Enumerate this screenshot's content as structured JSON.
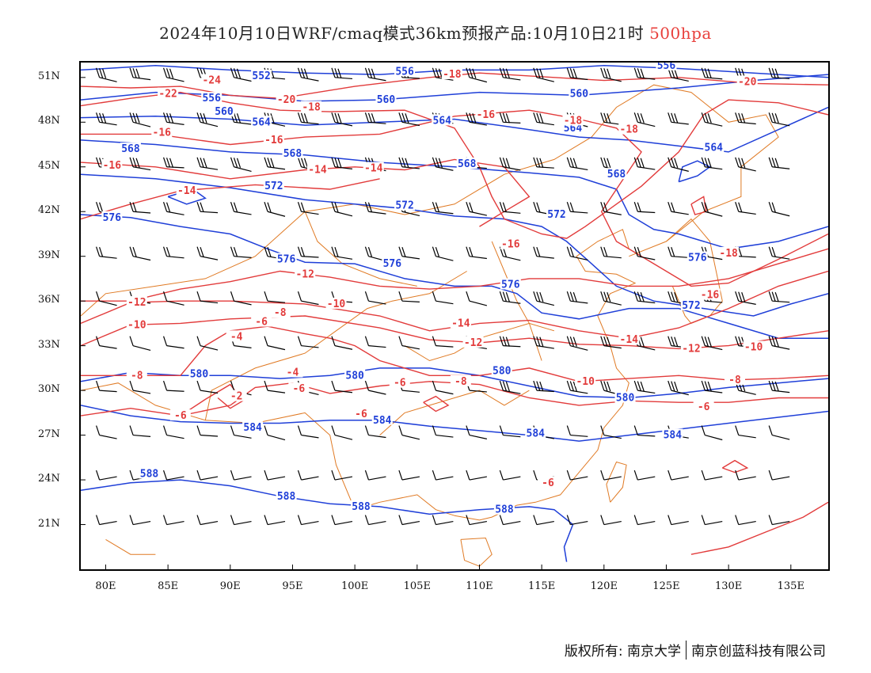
{
  "title": {
    "main": "2024年10月10日WRF/cmaq模式36km预报产品:10月10日21时",
    "level": "500hpa"
  },
  "map": {
    "lon_range": [
      78,
      138
    ],
    "lat_range": [
      18,
      52
    ],
    "lat_ticks": [
      "51N",
      "48N",
      "45N",
      "42N",
      "39N",
      "36N",
      "33N",
      "30N",
      "27N",
      "24N",
      "21N"
    ],
    "lat_values": [
      51,
      48,
      45,
      42,
      39,
      36,
      33,
      30,
      27,
      24,
      21
    ],
    "lon_ticks": [
      "80E",
      "85E",
      "90E",
      "95E",
      "100E",
      "105E",
      "110E",
      "115E",
      "120E",
      "125E",
      "130E",
      "135E"
    ],
    "lon_values": [
      80,
      85,
      90,
      95,
      100,
      105,
      110,
      115,
      120,
      125,
      130,
      135
    ],
    "colors": {
      "height_contour": "#1f3fd8",
      "temperature_contour": "#e23b3b",
      "wind_barb": "#000000",
      "boundary": "#e07a24"
    },
    "height_labels": [
      {
        "text": "552",
        "lon": 92.5,
        "lat": 51.1
      },
      {
        "text": "556",
        "lon": 104,
        "lat": 51.4
      },
      {
        "text": "556",
        "lon": 125,
        "lat": 51.8
      },
      {
        "text": "556",
        "lon": 88.5,
        "lat": 49.6
      },
      {
        "text": "560",
        "lon": 89.5,
        "lat": 48.7
      },
      {
        "text": "560",
        "lon": 102.5,
        "lat": 49.5
      },
      {
        "text": "560",
        "lon": 118,
        "lat": 49.9
      },
      {
        "text": "564",
        "lon": 92.5,
        "lat": 48
      },
      {
        "text": "564",
        "lon": 107,
        "lat": 48.1
      },
      {
        "text": "564",
        "lon": 117.5,
        "lat": 47.6
      },
      {
        "text": "564",
        "lon": 128.8,
        "lat": 46.3
      },
      {
        "text": "568",
        "lon": 82,
        "lat": 46.2
      },
      {
        "text": "568",
        "lon": 95,
        "lat": 45.9
      },
      {
        "text": "568",
        "lon": 109,
        "lat": 45.2
      },
      {
        "text": "568",
        "lon": 121,
        "lat": 44.5
      },
      {
        "text": "572",
        "lon": 93.5,
        "lat": 43.7
      },
      {
        "text": "572",
        "lon": 104,
        "lat": 42.4
      },
      {
        "text": "572",
        "lon": 116.2,
        "lat": 41.8
      },
      {
        "text": "576",
        "lon": 80.5,
        "lat": 41.6
      },
      {
        "text": "576",
        "lon": 94.5,
        "lat": 38.8
      },
      {
        "text": "576",
        "lon": 103,
        "lat": 38.5
      },
      {
        "text": "576",
        "lon": 112.5,
        "lat": 37.1
      },
      {
        "text": "576",
        "lon": 127.5,
        "lat": 38.9
      },
      {
        "text": "572",
        "lon": 127,
        "lat": 35.7
      },
      {
        "text": "580",
        "lon": 87.5,
        "lat": 31.1
      },
      {
        "text": "580",
        "lon": 100,
        "lat": 31
      },
      {
        "text": "580",
        "lon": 111.8,
        "lat": 31.3
      },
      {
        "text": "580",
        "lon": 121.7,
        "lat": 29.5
      },
      {
        "text": "584",
        "lon": 91.8,
        "lat": 27.5
      },
      {
        "text": "584",
        "lon": 102.2,
        "lat": 28
      },
      {
        "text": "584",
        "lon": 114.5,
        "lat": 27.1
      },
      {
        "text": "584",
        "lon": 125.5,
        "lat": 27
      },
      {
        "text": "588",
        "lon": 83.5,
        "lat": 24.4
      },
      {
        "text": "588",
        "lon": 94.5,
        "lat": 22.9
      },
      {
        "text": "588",
        "lon": 100.5,
        "lat": 22.2
      },
      {
        "text": "588",
        "lon": 112,
        "lat": 22
      },
      {
        "text": "588",
        "lon": 83.5,
        "lat": 24.4
      }
    ],
    "temp_labels": [
      {
        "text": "-24",
        "lon": 88.5,
        "lat": 50.8
      },
      {
        "text": "-22",
        "lon": 85,
        "lat": 49.9
      },
      {
        "text": "-20",
        "lon": 94.5,
        "lat": 49.5
      },
      {
        "text": "-18",
        "lon": 96.5,
        "lat": 49
      },
      {
        "text": "-18",
        "lon": 107.8,
        "lat": 51.2
      },
      {
        "text": "-16",
        "lon": 84.5,
        "lat": 47.3
      },
      {
        "text": "-16",
        "lon": 93.5,
        "lat": 46.8
      },
      {
        "text": "-16",
        "lon": 110.5,
        "lat": 48.5
      },
      {
        "text": "-18",
        "lon": 117.5,
        "lat": 48.1
      },
      {
        "text": "-18",
        "lon": 122,
        "lat": 47.5
      },
      {
        "text": "-20",
        "lon": 131.5,
        "lat": 50.7
      },
      {
        "text": "-16",
        "lon": 80.5,
        "lat": 45.1
      },
      {
        "text": "-14",
        "lon": 97,
        "lat": 44.8
      },
      {
        "text": "-14",
        "lon": 101.5,
        "lat": 44.9
      },
      {
        "text": "-14",
        "lon": 86.5,
        "lat": 43.4
      },
      {
        "text": "-16",
        "lon": 112.5,
        "lat": 39.8
      },
      {
        "text": "-18",
        "lon": 130,
        "lat": 39.2
      },
      {
        "text": "-12",
        "lon": 96,
        "lat": 37.8
      },
      {
        "text": "-12",
        "lon": 82.5,
        "lat": 35.9
      },
      {
        "text": "-10",
        "lon": 98.5,
        "lat": 35.8
      },
      {
        "text": "-10",
        "lon": 82.5,
        "lat": 34.4
      },
      {
        "text": "-8",
        "lon": 94,
        "lat": 35.2
      },
      {
        "text": "-6",
        "lon": 92.5,
        "lat": 34.6
      },
      {
        "text": "-4",
        "lon": 90.5,
        "lat": 33.6
      },
      {
        "text": "-16",
        "lon": 128.5,
        "lat": 36.4
      },
      {
        "text": "-14",
        "lon": 108.5,
        "lat": 34.5
      },
      {
        "text": "-12",
        "lon": 109.5,
        "lat": 33.2
      },
      {
        "text": "-14",
        "lon": 122,
        "lat": 33.4
      },
      {
        "text": "-12",
        "lon": 127,
        "lat": 32.8
      },
      {
        "text": "-10",
        "lon": 132,
        "lat": 32.9
      },
      {
        "text": "-8",
        "lon": 82.5,
        "lat": 31
      },
      {
        "text": "-4",
        "lon": 95,
        "lat": 31.2
      },
      {
        "text": "-6",
        "lon": 95.5,
        "lat": 30.1
      },
      {
        "text": "-6",
        "lon": 103.6,
        "lat": 30.5
      },
      {
        "text": "-8",
        "lon": 108.5,
        "lat": 30.6
      },
      {
        "text": "-10",
        "lon": 118.5,
        "lat": 30.6
      },
      {
        "text": "-8",
        "lon": 130.5,
        "lat": 30.7
      },
      {
        "text": "-2",
        "lon": 90.5,
        "lat": 29.6
      },
      {
        "text": "-6",
        "lon": 86,
        "lat": 28.3
      },
      {
        "text": "-6",
        "lon": 100.5,
        "lat": 28.4
      },
      {
        "text": "-6",
        "lon": 128,
        "lat": 28.9
      },
      {
        "text": "-6",
        "lon": 115.5,
        "lat": 23.8
      }
    ]
  },
  "copyright": {
    "left": "版权所有: 南京大学",
    "right": "南京创蓝科技有限公司"
  }
}
